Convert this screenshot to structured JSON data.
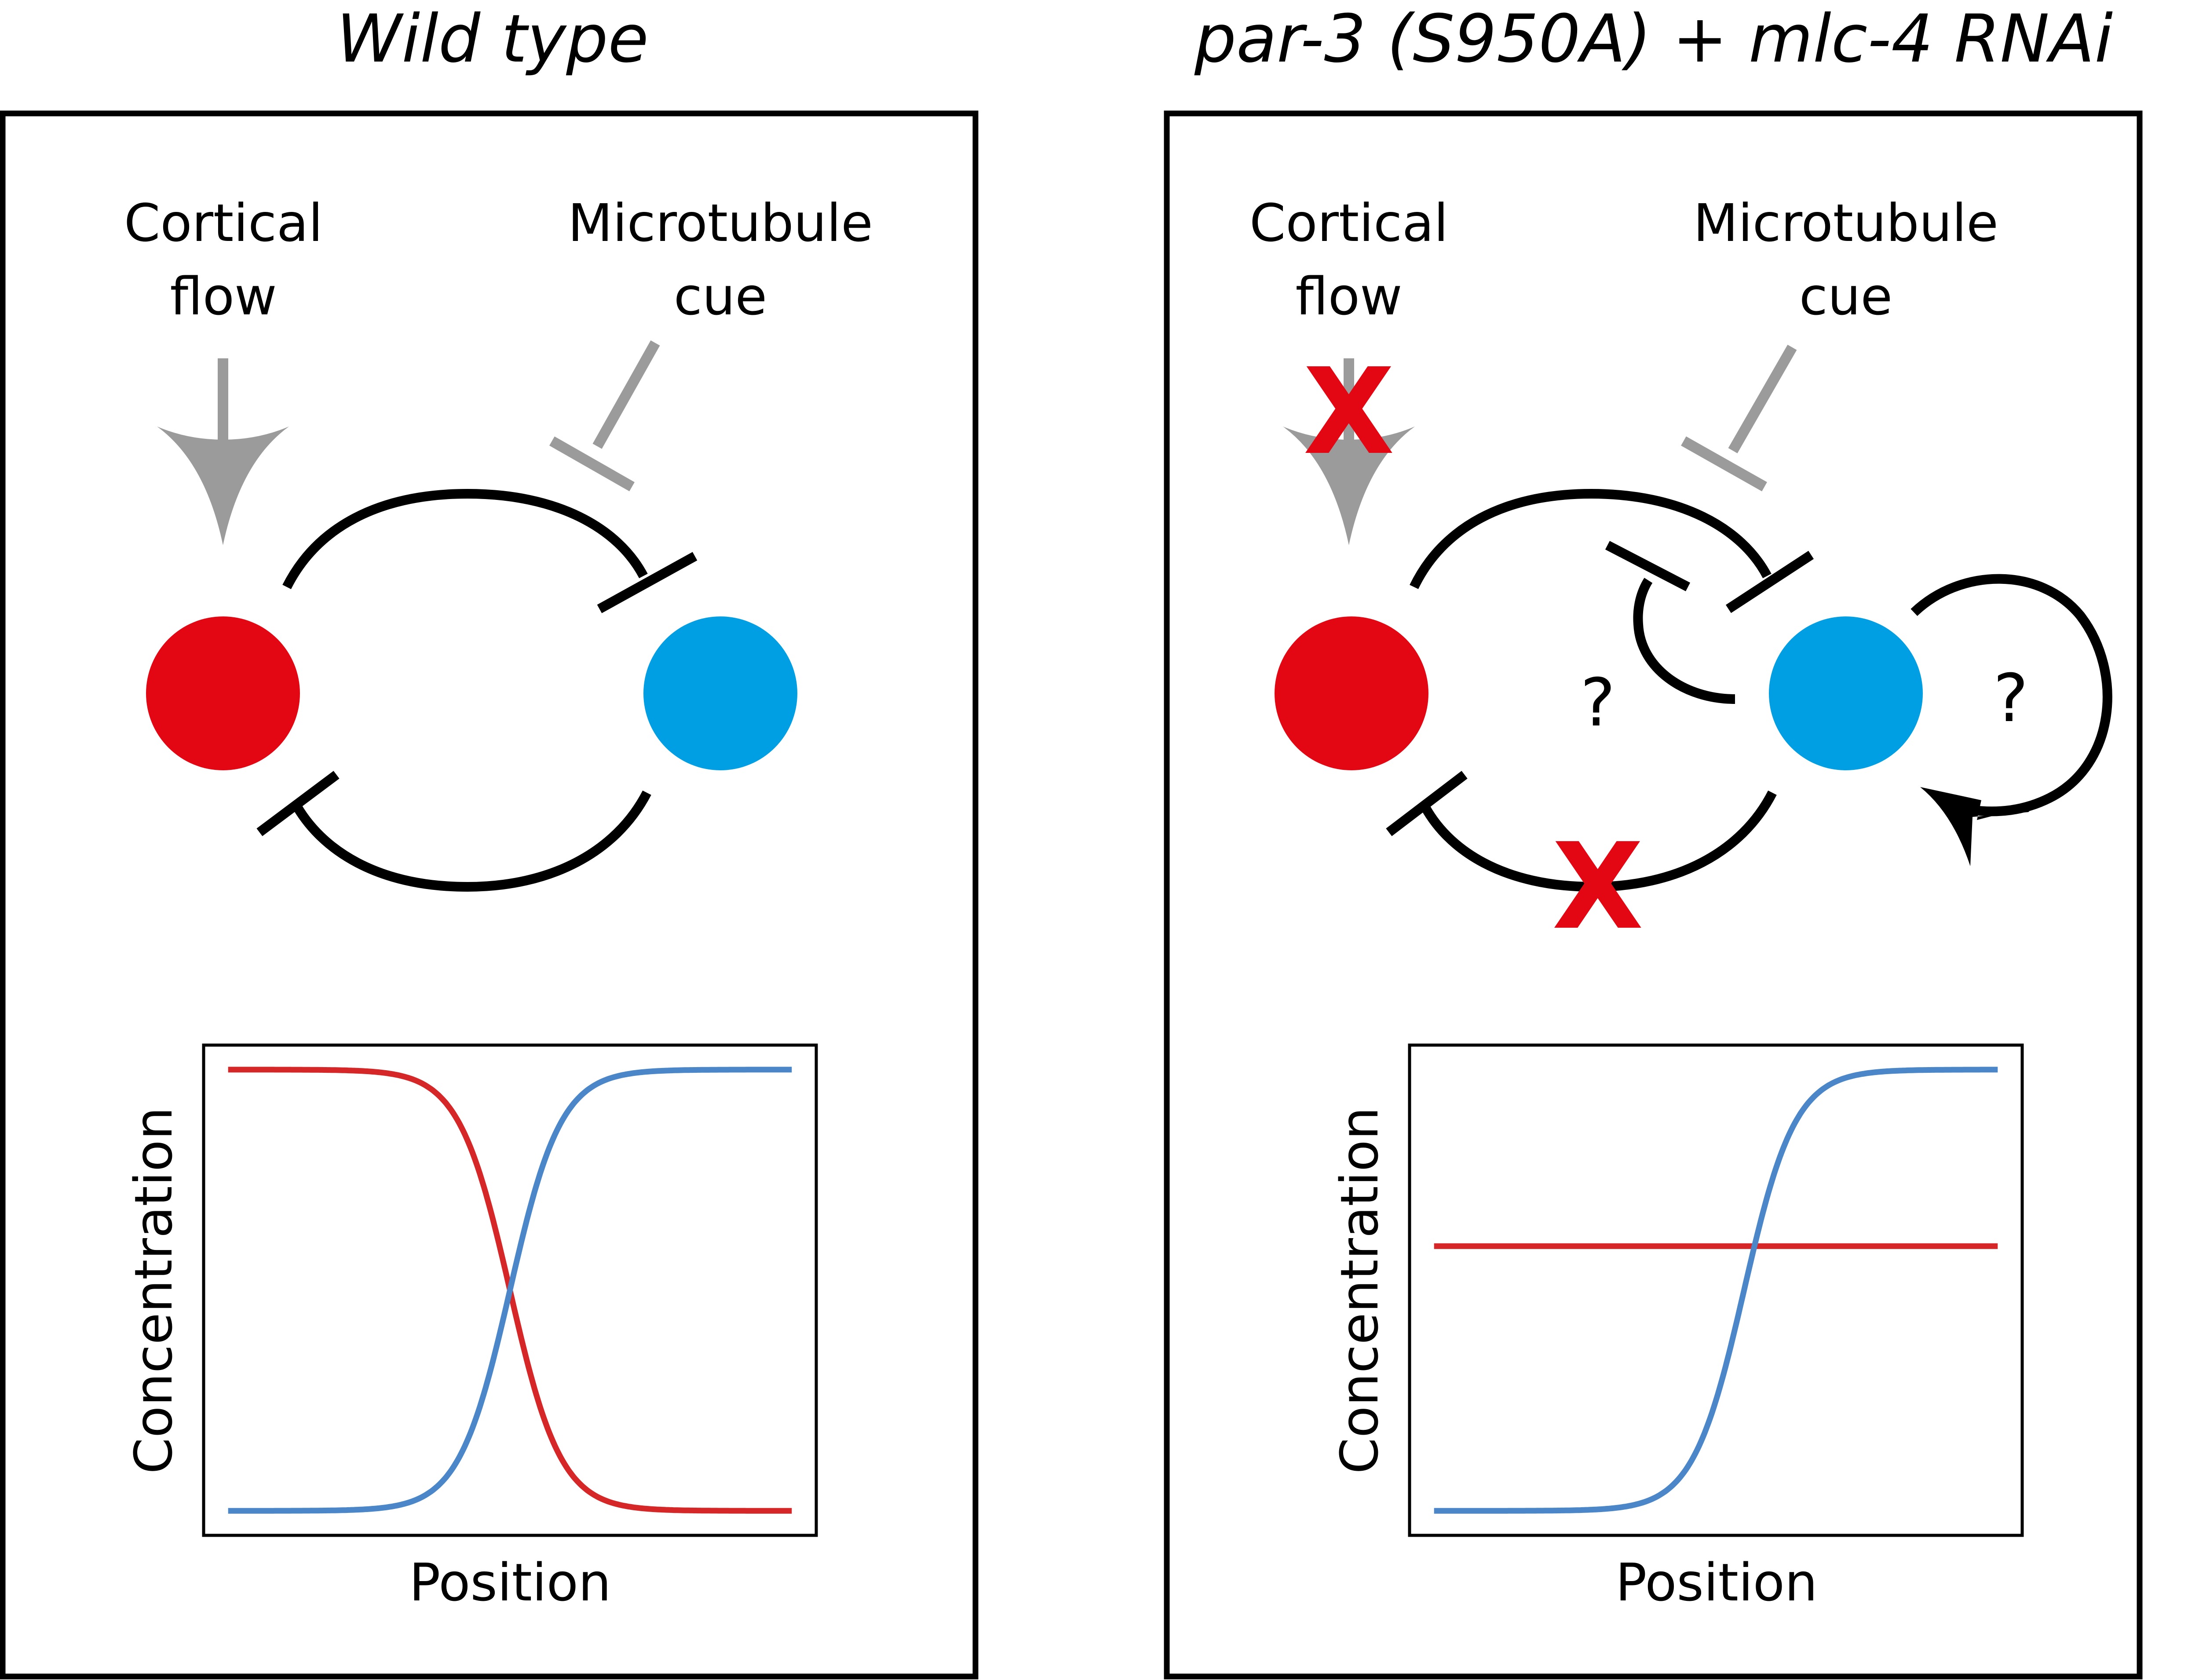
{
  "colors": {
    "red_species": "#e30613",
    "blue_species": "#009fe3",
    "red_line": "#d62728",
    "blue_line": "#4a86c8",
    "grey_cue": "#9b9b9b",
    "x_mark": "#e30613"
  },
  "left_panel": {
    "title": "Wild type",
    "cortical_flow": [
      "Cortical",
      "flow"
    ],
    "microtubule_cue": [
      "Microtubule",
      "cue"
    ],
    "xlabel": "Position",
    "ylabel": "Concentration"
  },
  "right_panel": {
    "title": "par-3 (S950A) + mlc-4 RNAi",
    "cortical_flow": [
      "Cortical",
      "flow"
    ],
    "microtubule_cue": [
      "Microtubule",
      "cue"
    ],
    "question_marks": [
      "?",
      "?"
    ],
    "x_marks": [
      "X",
      "X"
    ],
    "xlabel": "Position",
    "ylabel": "Concentration"
  },
  "chart_data": [
    {
      "type": "line",
      "panel": "Wild type",
      "xlabel": "Position",
      "ylabel": "Concentration",
      "xlim": [
        0,
        1
      ],
      "ylim": [
        0,
        1
      ],
      "series": [
        {
          "color": "red",
          "shape": "sigmoid-decreasing",
          "midpoint": 0.5,
          "high": 1,
          "low": 0
        },
        {
          "color": "blue",
          "shape": "sigmoid-increasing",
          "midpoint": 0.5,
          "high": 1,
          "low": 0
        }
      ]
    },
    {
      "type": "line",
      "panel": "par-3 (S950A) + mlc-4 RNAi",
      "xlabel": "Position",
      "ylabel": "Concentration",
      "xlim": [
        0,
        1
      ],
      "ylim": [
        0,
        1
      ],
      "series": [
        {
          "color": "red",
          "shape": "constant",
          "value": 0.6
        },
        {
          "color": "blue",
          "shape": "sigmoid-increasing",
          "midpoint": 0.55,
          "high": 1,
          "low": 0
        }
      ]
    }
  ]
}
